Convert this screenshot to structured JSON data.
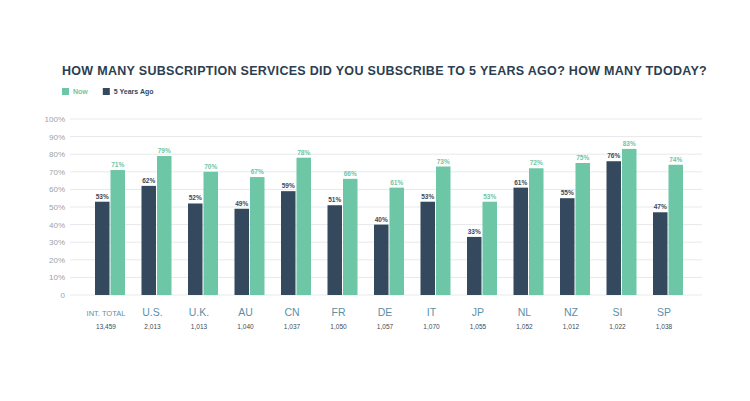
{
  "chart_data": {
    "type": "bar",
    "title": "HOW MANY SUBSCRIPTION SERVICES DID YOU SUBSCRIBE TO 5 YEARS AGO? HOW MANY TDODAY?",
    "categories": [
      "INT. TOTAL",
      "U.S.",
      "U.K.",
      "AU",
      "CN",
      "FR",
      "DE",
      "IT",
      "JP",
      "NL",
      "NZ",
      "SI",
      "SP"
    ],
    "sample_sizes": [
      "13,459",
      "2,013",
      "1,013",
      "1,040",
      "1,037",
      "1,050",
      "1,057",
      "1,070",
      "1,055",
      "1,052",
      "1,012",
      "1,022",
      "1,038"
    ],
    "series": [
      {
        "name": "Now",
        "color": "#6dc6a5",
        "values": [
          71,
          79,
          70,
          67,
          78,
          66,
          61,
          73,
          53,
          72,
          75,
          83,
          74
        ],
        "value_labels": [
          "71%",
          "79%",
          "70%",
          "67%",
          "78%",
          "66%",
          "61%",
          "73%",
          "53%",
          "72%",
          "75%",
          "83%",
          "74%"
        ]
      },
      {
        "name": "5 Years Ago",
        "color": "#34495e",
        "values": [
          53,
          62,
          52,
          49,
          59,
          51,
          40,
          53,
          33,
          61,
          55,
          76,
          47
        ],
        "value_labels": [
          "53%",
          "62%",
          "52%",
          "49%",
          "59%",
          "51%",
          "40%",
          "53%",
          "33%",
          "61%",
          "55%",
          "76%",
          "47%"
        ]
      }
    ],
    "ylim": [
      0,
      100
    ],
    "yticks": [
      0,
      {
        "value": 10,
        "label": "10%"
      },
      {
        "value": 20,
        "label": "20%"
      },
      {
        "value": 30,
        "label": "30%"
      },
      {
        "value": 40,
        "label": "40%"
      },
      {
        "value": 50,
        "label": "50%"
      },
      {
        "value": 60,
        "label": "60%"
      },
      {
        "value": 70,
        "label": "70%"
      },
      {
        "value": 80,
        "label": "80%"
      },
      {
        "value": 90,
        "label": "90%"
      },
      {
        "value": 100,
        "label": "100%"
      }
    ],
    "grid": true,
    "legend": "top-left",
    "data_labels": true
  }
}
